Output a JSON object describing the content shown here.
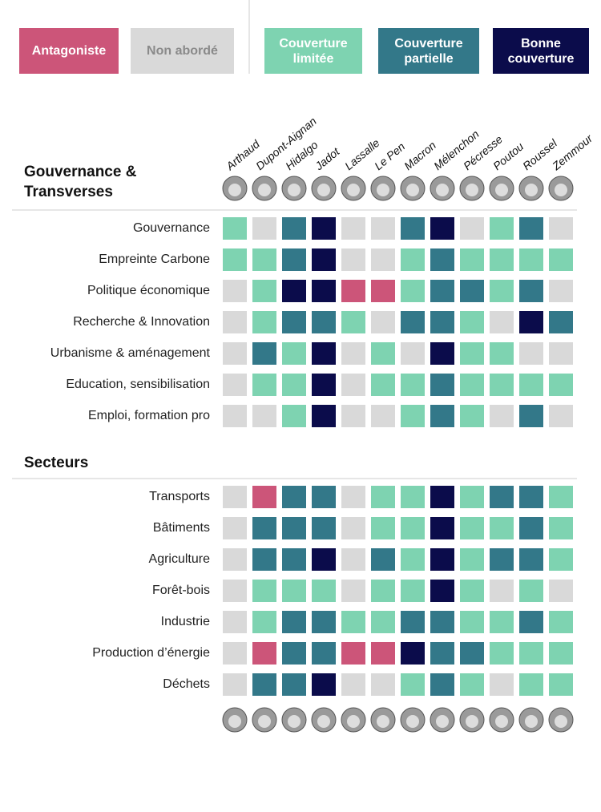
{
  "legend": [
    {
      "label": "Antagoniste",
      "color": "#cc5579"
    },
    {
      "label": "Non abordé",
      "color": "#d9d9d9"
    },
    {
      "label": "Couverture limitée",
      "color": "#7ed3b1"
    },
    {
      "label": "Couverture partielle",
      "color": "#337889"
    },
    {
      "label": "Bonne couverture",
      "color": "#0b0c4b"
    }
  ],
  "candidates": [
    "Arthaud",
    "Dupont-Aignan",
    "Hidalgo",
    "Jadot",
    "Lassalle",
    "Le Pen",
    "Macron",
    "Mélenchon",
    "Pécresse",
    "Poutou",
    "Roussel",
    "Zemmour"
  ],
  "sections": [
    {
      "title": "Gouvernance & Transverses",
      "rows": [
        {
          "label": "Gouvernance",
          "cells": [
            2,
            1,
            3,
            4,
            1,
            1,
            3,
            4,
            1,
            2,
            3,
            1
          ]
        },
        {
          "label": "Empreinte Carbone",
          "cells": [
            2,
            2,
            3,
            4,
            1,
            1,
            2,
            3,
            2,
            2,
            2,
            2
          ]
        },
        {
          "label": "Politique économique",
          "cells": [
            1,
            2,
            4,
            4,
            0,
            0,
            2,
            3,
            3,
            2,
            3,
            1
          ]
        },
        {
          "label": "Recherche & Innovation",
          "cells": [
            1,
            2,
            3,
            3,
            2,
            1,
            3,
            3,
            2,
            1,
            4,
            3
          ]
        },
        {
          "label": "Urbanisme & aménagement",
          "cells": [
            1,
            3,
            2,
            4,
            1,
            2,
            1,
            4,
            2,
            2,
            1,
            1
          ]
        },
        {
          "label": "Education, sensibilisation",
          "cells": [
            1,
            2,
            2,
            4,
            1,
            2,
            2,
            3,
            2,
            2,
            2,
            2
          ]
        },
        {
          "label": "Emploi, formation pro",
          "cells": [
            1,
            1,
            2,
            4,
            1,
            1,
            2,
            3,
            2,
            1,
            3,
            1
          ]
        }
      ]
    },
    {
      "title": "Secteurs",
      "rows": [
        {
          "label": "Transports",
          "cells": [
            1,
            0,
            3,
            3,
            1,
            2,
            2,
            4,
            2,
            3,
            3,
            2
          ]
        },
        {
          "label": "Bâtiments",
          "cells": [
            1,
            3,
            3,
            3,
            1,
            2,
            2,
            4,
            2,
            2,
            3,
            2
          ]
        },
        {
          "label": "Agriculture",
          "cells": [
            1,
            3,
            3,
            4,
            1,
            3,
            2,
            4,
            2,
            3,
            3,
            2
          ]
        },
        {
          "label": "Forêt-bois",
          "cells": [
            1,
            2,
            2,
            2,
            1,
            2,
            2,
            4,
            2,
            1,
            2,
            1
          ]
        },
        {
          "label": "Industrie",
          "cells": [
            1,
            2,
            3,
            3,
            2,
            2,
            3,
            3,
            2,
            2,
            3,
            2
          ]
        },
        {
          "label": "Production d’énergie",
          "cells": [
            1,
            0,
            3,
            3,
            0,
            0,
            4,
            3,
            3,
            2,
            2,
            2
          ]
        },
        {
          "label": "Déchets",
          "cells": [
            1,
            3,
            3,
            4,
            1,
            1,
            2,
            3,
            2,
            1,
            2,
            2
          ]
        }
      ]
    }
  ]
}
